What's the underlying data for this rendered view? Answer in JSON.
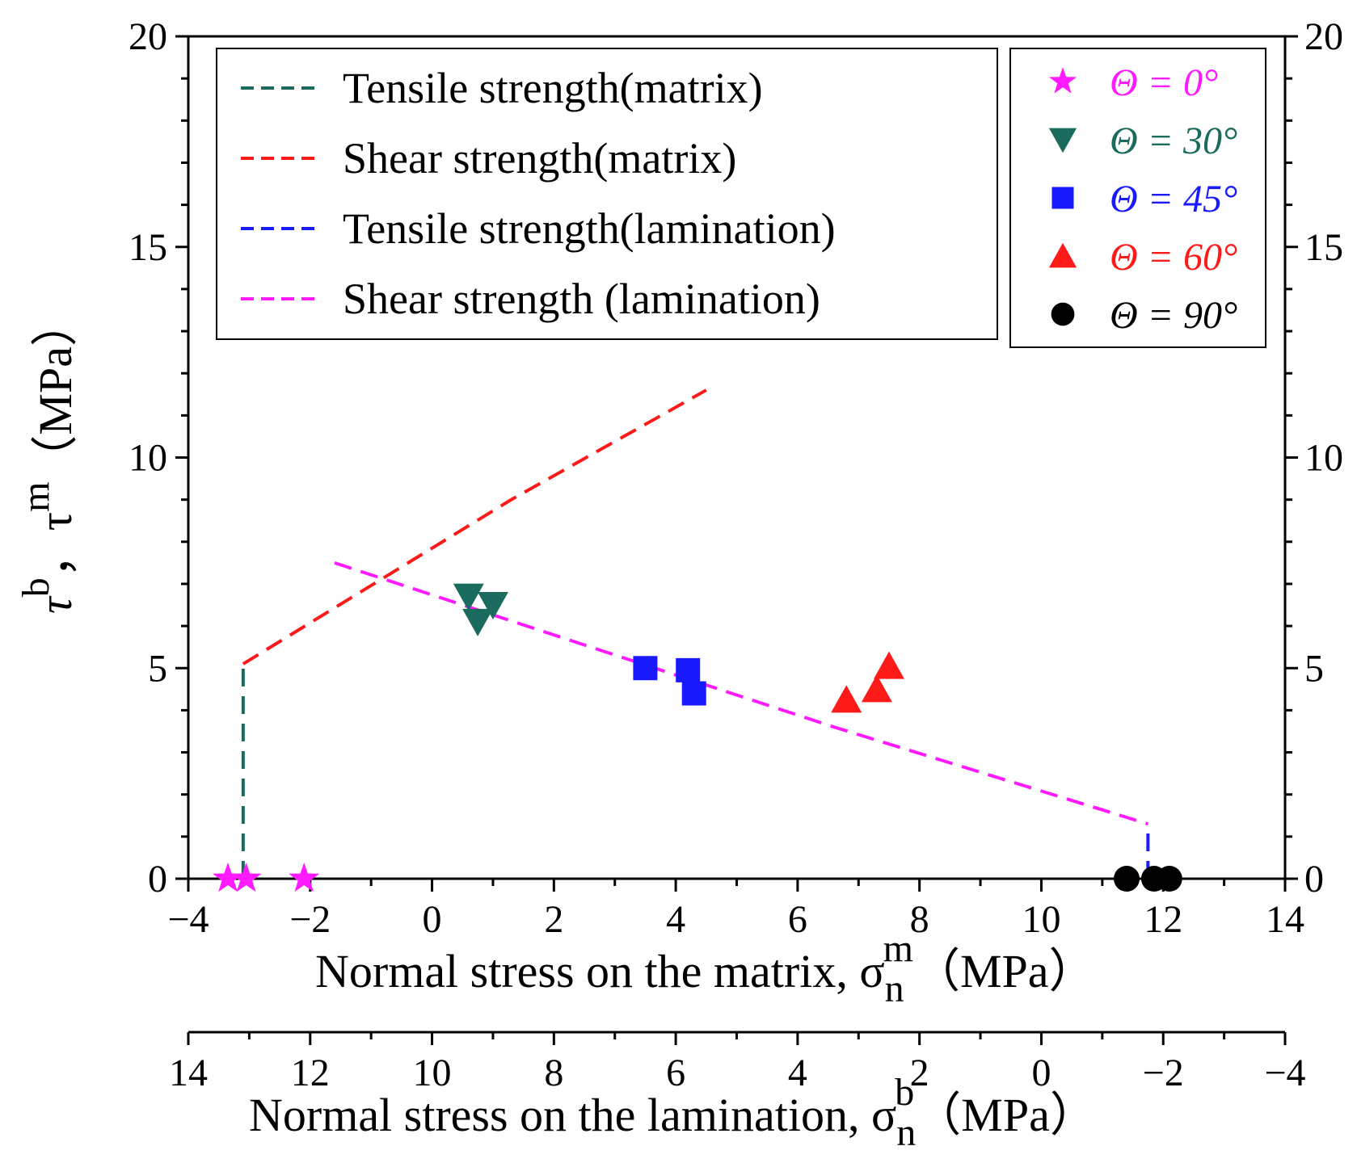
{
  "chart_data": {
    "type": "scatter",
    "x_axis_bottom": {
      "label": "Normal stress on the matrix, ",
      "symbol": "σ",
      "sub": "n",
      "sup": "m",
      "unit": "（MPa）",
      "range": [
        -4,
        14
      ],
      "ticks": [
        "−4",
        "−2",
        "0",
        "2",
        "4",
        "6",
        "8",
        "10",
        "12",
        "14"
      ]
    },
    "x_axis_secondary": {
      "label": "Normal stress on the lamination, ",
      "symbol": "σ",
      "sub": "n",
      "sup": "b",
      "unit": "（MPa）",
      "range": [
        14,
        -4
      ],
      "ticks": [
        "14",
        "12",
        "10",
        "8",
        "6",
        "4",
        "2",
        "0",
        "−2",
        "−4"
      ]
    },
    "y_axis": {
      "label_parts": [
        "τ",
        "b",
        "，τ",
        "m",
        "（MPa）"
      ],
      "range": [
        0,
        20
      ],
      "ticks": [
        "0",
        "5",
        "10",
        "15",
        "20"
      ]
    },
    "lines": [
      {
        "name": "Tensile strength(matrix)",
        "color": "#1a6b5e",
        "points": [
          [
            -3.1,
            0
          ],
          [
            -3.1,
            5.1
          ]
        ]
      },
      {
        "name": "Shear strength(matrix)",
        "color": "#ff1a1a",
        "points": [
          [
            -3.1,
            5.1
          ],
          [
            1.3,
            9.0
          ],
          [
            4.5,
            11.6
          ]
        ]
      },
      {
        "name": "Tensile strength(lamination)",
        "color": "#1a1aff",
        "points": [
          [
            11.75,
            0
          ],
          [
            11.75,
            1.3
          ]
        ]
      },
      {
        "name": "Shear strength (lamination)",
        "color": "#ff1aff",
        "points": [
          [
            -1.6,
            7.5
          ],
          [
            6.6,
            3.6
          ],
          [
            11.75,
            1.3
          ]
        ]
      }
    ],
    "series": [
      {
        "name": "Θ = 0°",
        "marker": "star",
        "color": "#ff1aff",
        "points": [
          [
            -3.35,
            0
          ],
          [
            -3.05,
            0
          ],
          [
            -2.1,
            0
          ]
        ]
      },
      {
        "name": "Θ = 30°",
        "marker": "triangle-down",
        "color": "#1a6b5e",
        "points": [
          [
            0.6,
            6.7
          ],
          [
            0.75,
            6.1
          ],
          [
            1.0,
            6.5
          ]
        ]
      },
      {
        "name": "Θ = 45°",
        "marker": "square",
        "color": "#1a1aff",
        "points": [
          [
            3.5,
            5.0
          ],
          [
            4.2,
            4.95
          ],
          [
            4.3,
            4.4
          ]
        ]
      },
      {
        "name": "Θ = 60°",
        "marker": "triangle-up",
        "color": "#ff1a1a",
        "points": [
          [
            6.8,
            4.25
          ],
          [
            7.3,
            4.5
          ],
          [
            7.5,
            5.05
          ]
        ]
      },
      {
        "name": "Θ = 90°",
        "marker": "circle",
        "color": "#000000",
        "points": [
          [
            11.4,
            0
          ],
          [
            11.85,
            0
          ],
          [
            12.1,
            0
          ]
        ]
      }
    ],
    "legend_lines_position": "top-left",
    "legend_markers_position": "top-right",
    "grid": false
  }
}
